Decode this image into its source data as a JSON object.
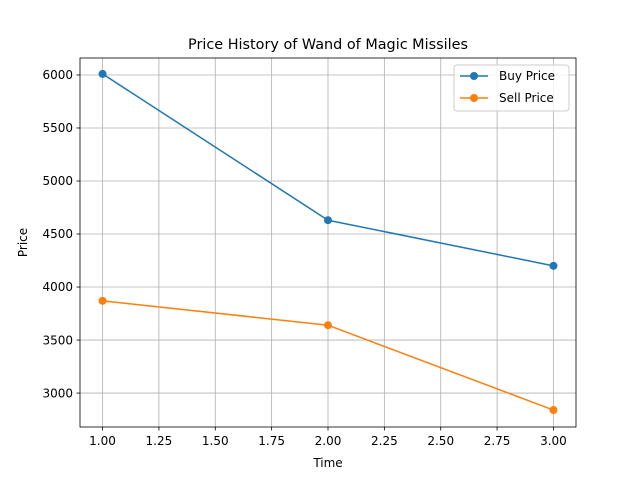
{
  "chart_data": {
    "type": "line",
    "title": "Price History of Wand of Magic Missiles",
    "xlabel": "Time",
    "ylabel": "Price",
    "x": [
      1,
      2,
      3
    ],
    "xlim": [
      0.9,
      3.1
    ],
    "ylim": [
      2680,
      6160
    ],
    "xticks": [
      "1.00",
      "1.25",
      "1.50",
      "1.75",
      "2.00",
      "2.25",
      "2.50",
      "2.75",
      "3.00"
    ],
    "yticks": [
      "3000",
      "3500",
      "4000",
      "4500",
      "5000",
      "5500",
      "6000"
    ],
    "grid": true,
    "legend_position": "top-right",
    "series": [
      {
        "name": "Buy Price",
        "color": "#1f77b4",
        "marker": "circle",
        "values": [
          6010,
          4630,
          4200
        ]
      },
      {
        "name": "Sell Price",
        "color": "#ff7f0e",
        "marker": "circle",
        "values": [
          3870,
          3640,
          2840
        ]
      }
    ]
  }
}
